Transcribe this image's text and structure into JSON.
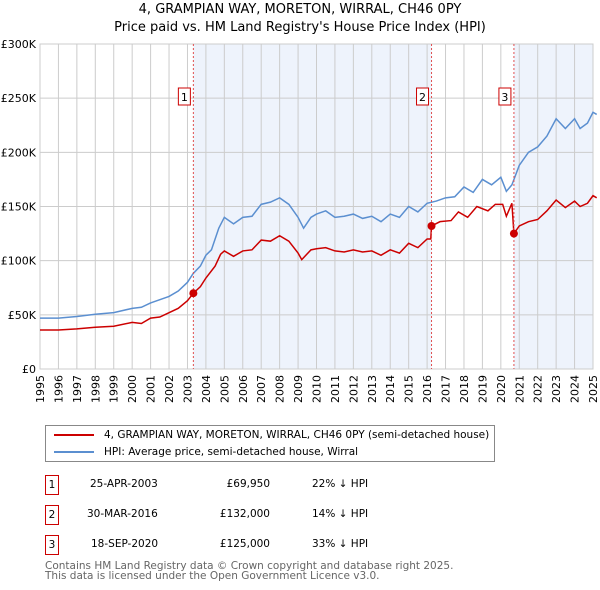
{
  "title": "4, GRAMPIAN WAY, MORETON, WIRRAL, CH46 0PY",
  "subtitle": "Price paid vs. HM Land Registry's House Price Index (HPI)",
  "chart_data": {
    "type": "line",
    "ylim": [
      0,
      300000
    ],
    "xlim": [
      1995,
      2025
    ],
    "yticks": [
      0,
      50000,
      100000,
      150000,
      200000,
      250000,
      300000
    ],
    "ytick_labels": [
      "£0",
      "£50K",
      "£100K",
      "£150K",
      "£200K",
      "£250K",
      "£300K"
    ],
    "xticks": [
      "1995",
      "1996",
      "1997",
      "1998",
      "1999",
      "2000",
      "2001",
      "2002",
      "2003",
      "2004",
      "2005",
      "2006",
      "2007",
      "2008",
      "2009",
      "2010",
      "2011",
      "2012",
      "2013",
      "2014",
      "2015",
      "2016",
      "2017",
      "2018",
      "2019",
      "2020",
      "2021",
      "2022",
      "2023",
      "2024",
      "2025"
    ],
    "grid": true,
    "shaded_periods": [
      [
        2003.32,
        2016.24
      ],
      [
        2020.71,
        2025
      ]
    ],
    "series": [
      {
        "name": "4, GRAMPIAN WAY, MORETON, WIRRAL, CH46 0PY (semi-detached house)",
        "color": "#cc0000",
        "points": [
          [
            1995,
            36
          ],
          [
            1996,
            36
          ],
          [
            1997,
            37
          ],
          [
            1998,
            38.5
          ],
          [
            1999,
            39.5
          ],
          [
            2000,
            43
          ],
          [
            2000.5,
            42
          ],
          [
            2001,
            47
          ],
          [
            2001.5,
            48
          ],
          [
            2002,
            52
          ],
          [
            2002.5,
            56
          ],
          [
            2003,
            63
          ],
          [
            2003.32,
            69.95
          ],
          [
            2003.7,
            76
          ],
          [
            2004,
            84
          ],
          [
            2004.5,
            95
          ],
          [
            2004.8,
            106
          ],
          [
            2005,
            109
          ],
          [
            2005.5,
            104
          ],
          [
            2006,
            109
          ],
          [
            2006.5,
            110
          ],
          [
            2007,
            119
          ],
          [
            2007.5,
            118
          ],
          [
            2008,
            123
          ],
          [
            2008.5,
            118
          ],
          [
            2009,
            107
          ],
          [
            2009.2,
            101
          ],
          [
            2009.7,
            110
          ],
          [
            2010,
            111
          ],
          [
            2010.5,
            112
          ],
          [
            2011,
            109
          ],
          [
            2011.5,
            108
          ],
          [
            2012,
            110
          ],
          [
            2012.5,
            108
          ],
          [
            2013,
            109
          ],
          [
            2013.5,
            105
          ],
          [
            2014,
            110
          ],
          [
            2014.5,
            107
          ],
          [
            2015,
            116
          ],
          [
            2015.5,
            112
          ],
          [
            2016,
            120
          ],
          [
            2016.2,
            120
          ],
          [
            2016.24,
            132
          ],
          [
            2016.7,
            136
          ],
          [
            2017.3,
            137
          ],
          [
            2017.7,
            145
          ],
          [
            2018.2,
            140
          ],
          [
            2018.7,
            150
          ],
          [
            2019.3,
            146
          ],
          [
            2019.7,
            152
          ],
          [
            2020.1,
            152
          ],
          [
            2020.3,
            141
          ],
          [
            2020.6,
            153
          ],
          [
            2020.71,
            125
          ],
          [
            2021,
            132
          ],
          [
            2021.5,
            136
          ],
          [
            2022,
            138
          ],
          [
            2022.5,
            146
          ],
          [
            2023,
            156
          ],
          [
            2023.5,
            149
          ],
          [
            2024,
            155
          ],
          [
            2024.3,
            150
          ],
          [
            2024.7,
            153
          ],
          [
            2025,
            160
          ],
          [
            2025.2,
            158
          ]
        ]
      },
      {
        "name": "HPI: Average price, semi-detached house, Wirral",
        "color": "#5b8fd0",
        "points": [
          [
            1995,
            47
          ],
          [
            1996,
            47
          ],
          [
            1997,
            48.5
          ],
          [
            1998,
            50.5
          ],
          [
            1999,
            52
          ],
          [
            2000,
            56
          ],
          [
            2000.5,
            57
          ],
          [
            2001,
            61
          ],
          [
            2001.5,
            64
          ],
          [
            2002,
            67
          ],
          [
            2002.5,
            72
          ],
          [
            2003,
            80
          ],
          [
            2003.3,
            88
          ],
          [
            2003.7,
            95
          ],
          [
            2004,
            105
          ],
          [
            2004.3,
            110
          ],
          [
            2004.7,
            130
          ],
          [
            2005,
            140
          ],
          [
            2005.5,
            134
          ],
          [
            2006,
            140
          ],
          [
            2006.5,
            141
          ],
          [
            2007,
            152
          ],
          [
            2007.5,
            154
          ],
          [
            2008,
            158
          ],
          [
            2008.5,
            152
          ],
          [
            2009,
            140
          ],
          [
            2009.3,
            130
          ],
          [
            2009.7,
            140
          ],
          [
            2010,
            143
          ],
          [
            2010.5,
            146
          ],
          [
            2011,
            140
          ],
          [
            2011.5,
            141
          ],
          [
            2012,
            143
          ],
          [
            2012.5,
            139
          ],
          [
            2013,
            141
          ],
          [
            2013.5,
            136
          ],
          [
            2014,
            143
          ],
          [
            2014.5,
            140
          ],
          [
            2015,
            150
          ],
          [
            2015.5,
            145
          ],
          [
            2016,
            153
          ],
          [
            2016.5,
            155
          ],
          [
            2017,
            158
          ],
          [
            2017.5,
            159
          ],
          [
            2018,
            168
          ],
          [
            2018.5,
            163
          ],
          [
            2019,
            175
          ],
          [
            2019.5,
            170
          ],
          [
            2020,
            177
          ],
          [
            2020.3,
            164
          ],
          [
            2020.6,
            170
          ],
          [
            2021,
            188
          ],
          [
            2021.5,
            200
          ],
          [
            2022,
            205
          ],
          [
            2022.5,
            215
          ],
          [
            2023,
            231
          ],
          [
            2023.5,
            222
          ],
          [
            2024,
            231
          ],
          [
            2024.3,
            222
          ],
          [
            2024.7,
            227
          ],
          [
            2025,
            237
          ],
          [
            2025.2,
            235
          ]
        ]
      }
    ],
    "sales": [
      {
        "label": "1",
        "year": 2003.32,
        "price": 69950
      },
      {
        "label": "2",
        "year": 2016.24,
        "price": 132000
      },
      {
        "label": "3",
        "year": 2020.71,
        "price": 125000
      }
    ]
  },
  "legend": {
    "property": "4, GRAMPIAN WAY, MORETON, WIRRAL, CH46 0PY (semi-detached house)",
    "hpi": "HPI: Average price, semi-detached house, Wirral"
  },
  "transactions": [
    {
      "num": "1",
      "date": "25-APR-2003",
      "price": "£69,950",
      "delta": "22% ↓ HPI"
    },
    {
      "num": "2",
      "date": "30-MAR-2016",
      "price": "£132,000",
      "delta": "14% ↓ HPI"
    },
    {
      "num": "3",
      "date": "18-SEP-2020",
      "price": "£125,000",
      "delta": "33% ↓ HPI"
    }
  ],
  "footer": {
    "line1": "Contains HM Land Registry data © Crown copyright and database right 2025.",
    "line2": "This data is licensed under the Open Government Licence v3.0."
  }
}
